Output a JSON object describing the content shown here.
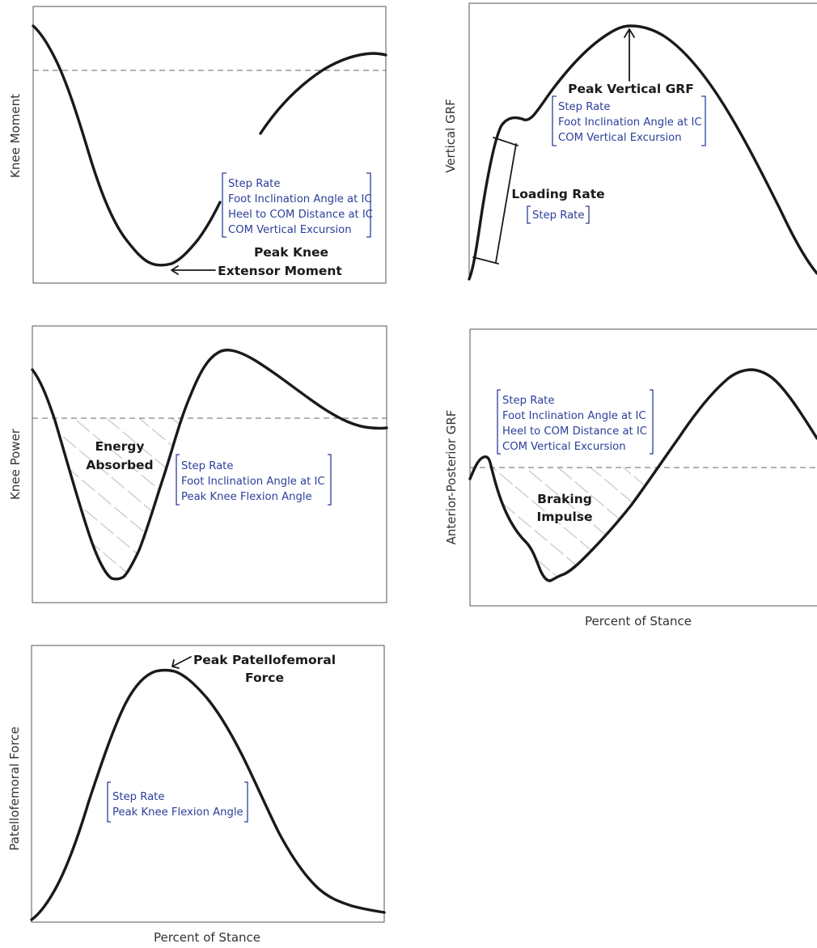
{
  "panels": {
    "knee_moment": {
      "ylabel": "Knee Moment",
      "callout": [
        "Peak Knee",
        "Extensor Moment"
      ],
      "factors": [
        "Step Rate",
        "Foot Inclination Angle at IC",
        "Heel to COM Distance at IC",
        "COM Vertical Excursion"
      ]
    },
    "vertical_grf": {
      "ylabel": "Vertical GRF",
      "callout": "Peak Vertical GRF",
      "factors": [
        "Step Rate",
        "Foot Inclination Angle at IC",
        "COM Vertical Excursion"
      ],
      "loading_callout": "Loading Rate",
      "loading_factors": [
        "Step Rate"
      ]
    },
    "knee_power": {
      "ylabel": "Knee Power",
      "callout": [
        "Energy",
        "Absorbed"
      ],
      "factors": [
        "Step Rate",
        "Foot Inclination Angle at IC",
        "Peak Knee Flexion Angle"
      ]
    },
    "ap_grf": {
      "ylabel": "Anterior-Posterior GRF",
      "callout": [
        "Braking",
        "Impulse"
      ],
      "factors": [
        "Step Rate",
        "Foot Inclination Angle at IC",
        "Heel to COM Distance at IC",
        "COM Vertical Excursion"
      ],
      "xlabel": "Percent of Stance"
    },
    "pf_force": {
      "ylabel": "Patellofemoral Force",
      "callout": [
        "Peak Patellofemoral",
        "Force"
      ],
      "factors": [
        "Step Rate",
        "Peak Knee Flexion Angle"
      ],
      "xlabel": "Percent of Stance"
    }
  },
  "colors": {
    "curve": "#1a1a1a",
    "factor_text": "#2b3f99",
    "reference_line": "#666666",
    "hatch": "#c4c4c4"
  }
}
